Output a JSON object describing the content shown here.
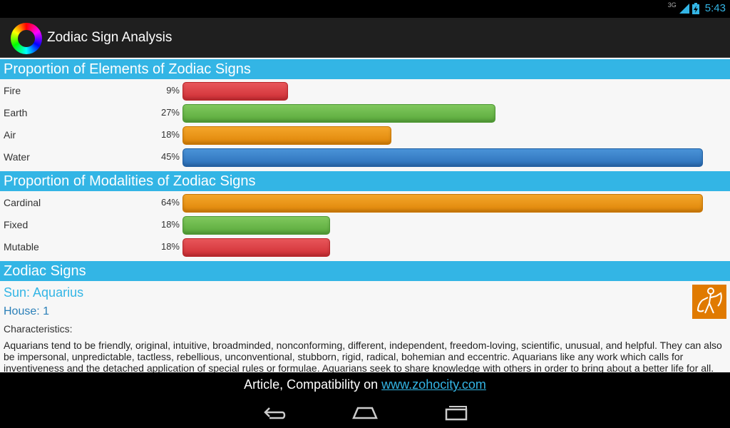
{
  "status": {
    "network": "3G",
    "time": "5:43"
  },
  "app": {
    "title": "Zodiac Sign Analysis",
    "icon": "color-wheel-icon"
  },
  "elements_section": {
    "title": "Proportion of Elements of Zodiac Signs",
    "rows": [
      {
        "label": "Fire",
        "pct": "9%",
        "value": 9,
        "color": "red"
      },
      {
        "label": "Earth",
        "pct": "27%",
        "value": 27,
        "color": "green"
      },
      {
        "label": "Air",
        "pct": "18%",
        "value": 18,
        "color": "orange"
      },
      {
        "label": "Water",
        "pct": "45%",
        "value": 45,
        "color": "blue"
      }
    ]
  },
  "modalities_section": {
    "title": "Proportion of Modalities of Zodiac Signs",
    "rows": [
      {
        "label": "Cardinal",
        "pct": "64%",
        "value": 64,
        "color": "orange"
      },
      {
        "label": "Fixed",
        "pct": "18%",
        "value": 18,
        "color": "green"
      },
      {
        "label": "Mutable",
        "pct": "18%",
        "value": 18,
        "color": "red"
      }
    ]
  },
  "signs_section": {
    "title": "Zodiac Signs",
    "sun": "Sun: Aquarius",
    "house": "House: 1",
    "characteristics_label": "Characteristics:",
    "characteristics_text": "Aquarians tend to be friendly, original, intuitive, broadminded, nonconforming, different, independent, freedom-loving, scientific, unusual, and helpful. They can also be impersonal, unpredictable, tactless, rebellious, unconventional, stubborn, rigid, radical, bohemian and eccentric. Aquarians like any work which calls for inventiveness and the detached application of special rules or formulae. Aquarians seek to share knowledge with others in order to bring about a better life for all.",
    "sign_icon": "aquarius-water-bearer-icon"
  },
  "footer": {
    "prefix": "Article, Compatibility on ",
    "link": "www.zohocity.com"
  },
  "colors": {
    "accent": "#33b5e5",
    "red": "#d9363c",
    "green": "#66b545",
    "orange": "#ea9314",
    "blue": "#3680c8"
  }
}
